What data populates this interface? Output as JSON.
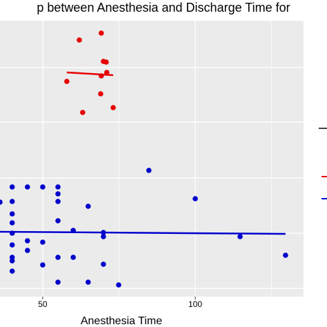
{
  "chart_data": {
    "type": "scatter",
    "title": "p between Anesthesia and Discharge Time for",
    "x_label": "Anesthesia Time",
    "xlim": [
      36,
      135.5
    ],
    "ylim": [
      0,
      400
    ],
    "xticks": [
      50,
      100
    ],
    "xminor": [
      75,
      125
    ],
    "ygrid": [
      332,
      253,
      172,
      92,
      12
    ],
    "grid": true,
    "series": [
      {
        "color": "#e60000",
        "x": [
          69.2,
          62,
          69.9,
          70.8,
          71,
          69.2,
          57.9,
          69,
          73.1,
          63.1
        ],
        "values": [
          382,
          372,
          341,
          340,
          325,
          320,
          312,
          294,
          274,
          267
        ],
        "fit_x": [
          57.9,
          73.1
        ],
        "fit_y": [
          325,
          321
        ]
      },
      {
        "color": "#0000cc",
        "x": [
          84.8,
          40,
          45,
          50,
          55,
          55,
          36,
          100,
          40,
          40,
          55,
          64.9,
          40,
          55,
          40,
          60,
          69.9,
          69.9,
          114.7,
          45,
          50,
          40,
          45,
          40,
          40,
          55,
          60,
          69.9,
          50,
          40,
          129.6,
          55,
          64.9,
          74.9
        ],
        "values": [
          183,
          159,
          159,
          159,
          159,
          149,
          137,
          142,
          138,
          120,
          138,
          131,
          107,
          110,
          92,
          96,
          93,
          87,
          87,
          81,
          79,
          75,
          67,
          57,
          52,
          57,
          57,
          47,
          46,
          37,
          60,
          21,
          21,
          17
        ],
        "fit_x": [
          36,
          129.6
        ],
        "fit_y": [
          94,
          91
        ]
      }
    ]
  }
}
